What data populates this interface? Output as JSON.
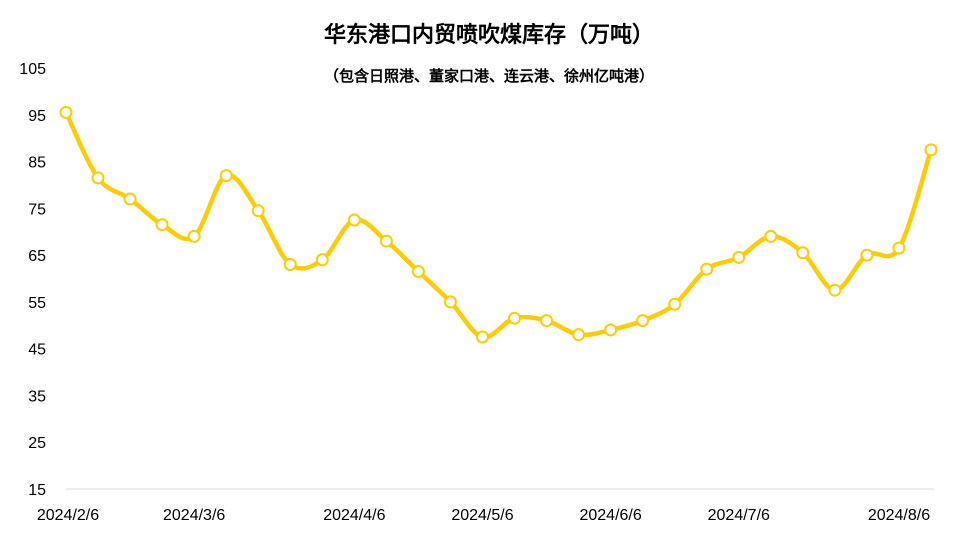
{
  "chart_data": {
    "type": "line",
    "title": "华东港口内贸喷吹煤库存（万吨）",
    "subtitle": "（包含日照港、董家口港、连云港、徐州亿吨港）",
    "xlabel": "",
    "ylabel": "",
    "ylim": [
      15,
      105
    ],
    "y_ticks": [
      "15",
      "25",
      "35",
      "45",
      "55",
      "65",
      "75",
      "85",
      "95",
      "105"
    ],
    "x_tick_labels": [
      "2024/2/6",
      "2024/3/6",
      "2024/4/6",
      "2024/5/6",
      "2024/6/6",
      "2024/7/6",
      "2024/8/6"
    ],
    "x_tick_index": [
      0,
      4,
      9,
      13,
      17,
      21,
      26
    ],
    "grid": false,
    "line_color": "#FFCC00",
    "series": [
      {
        "values": [
          95.5,
          81.5,
          77,
          71.5,
          69,
          82,
          74.5,
          63,
          64,
          72.5,
          68,
          61.5,
          55,
          47.5,
          51.5,
          51,
          48,
          49,
          51,
          54.5,
          62,
          64.5,
          69,
          65.5,
          57.5,
          65,
          66.5,
          87.5
        ]
      }
    ]
  }
}
